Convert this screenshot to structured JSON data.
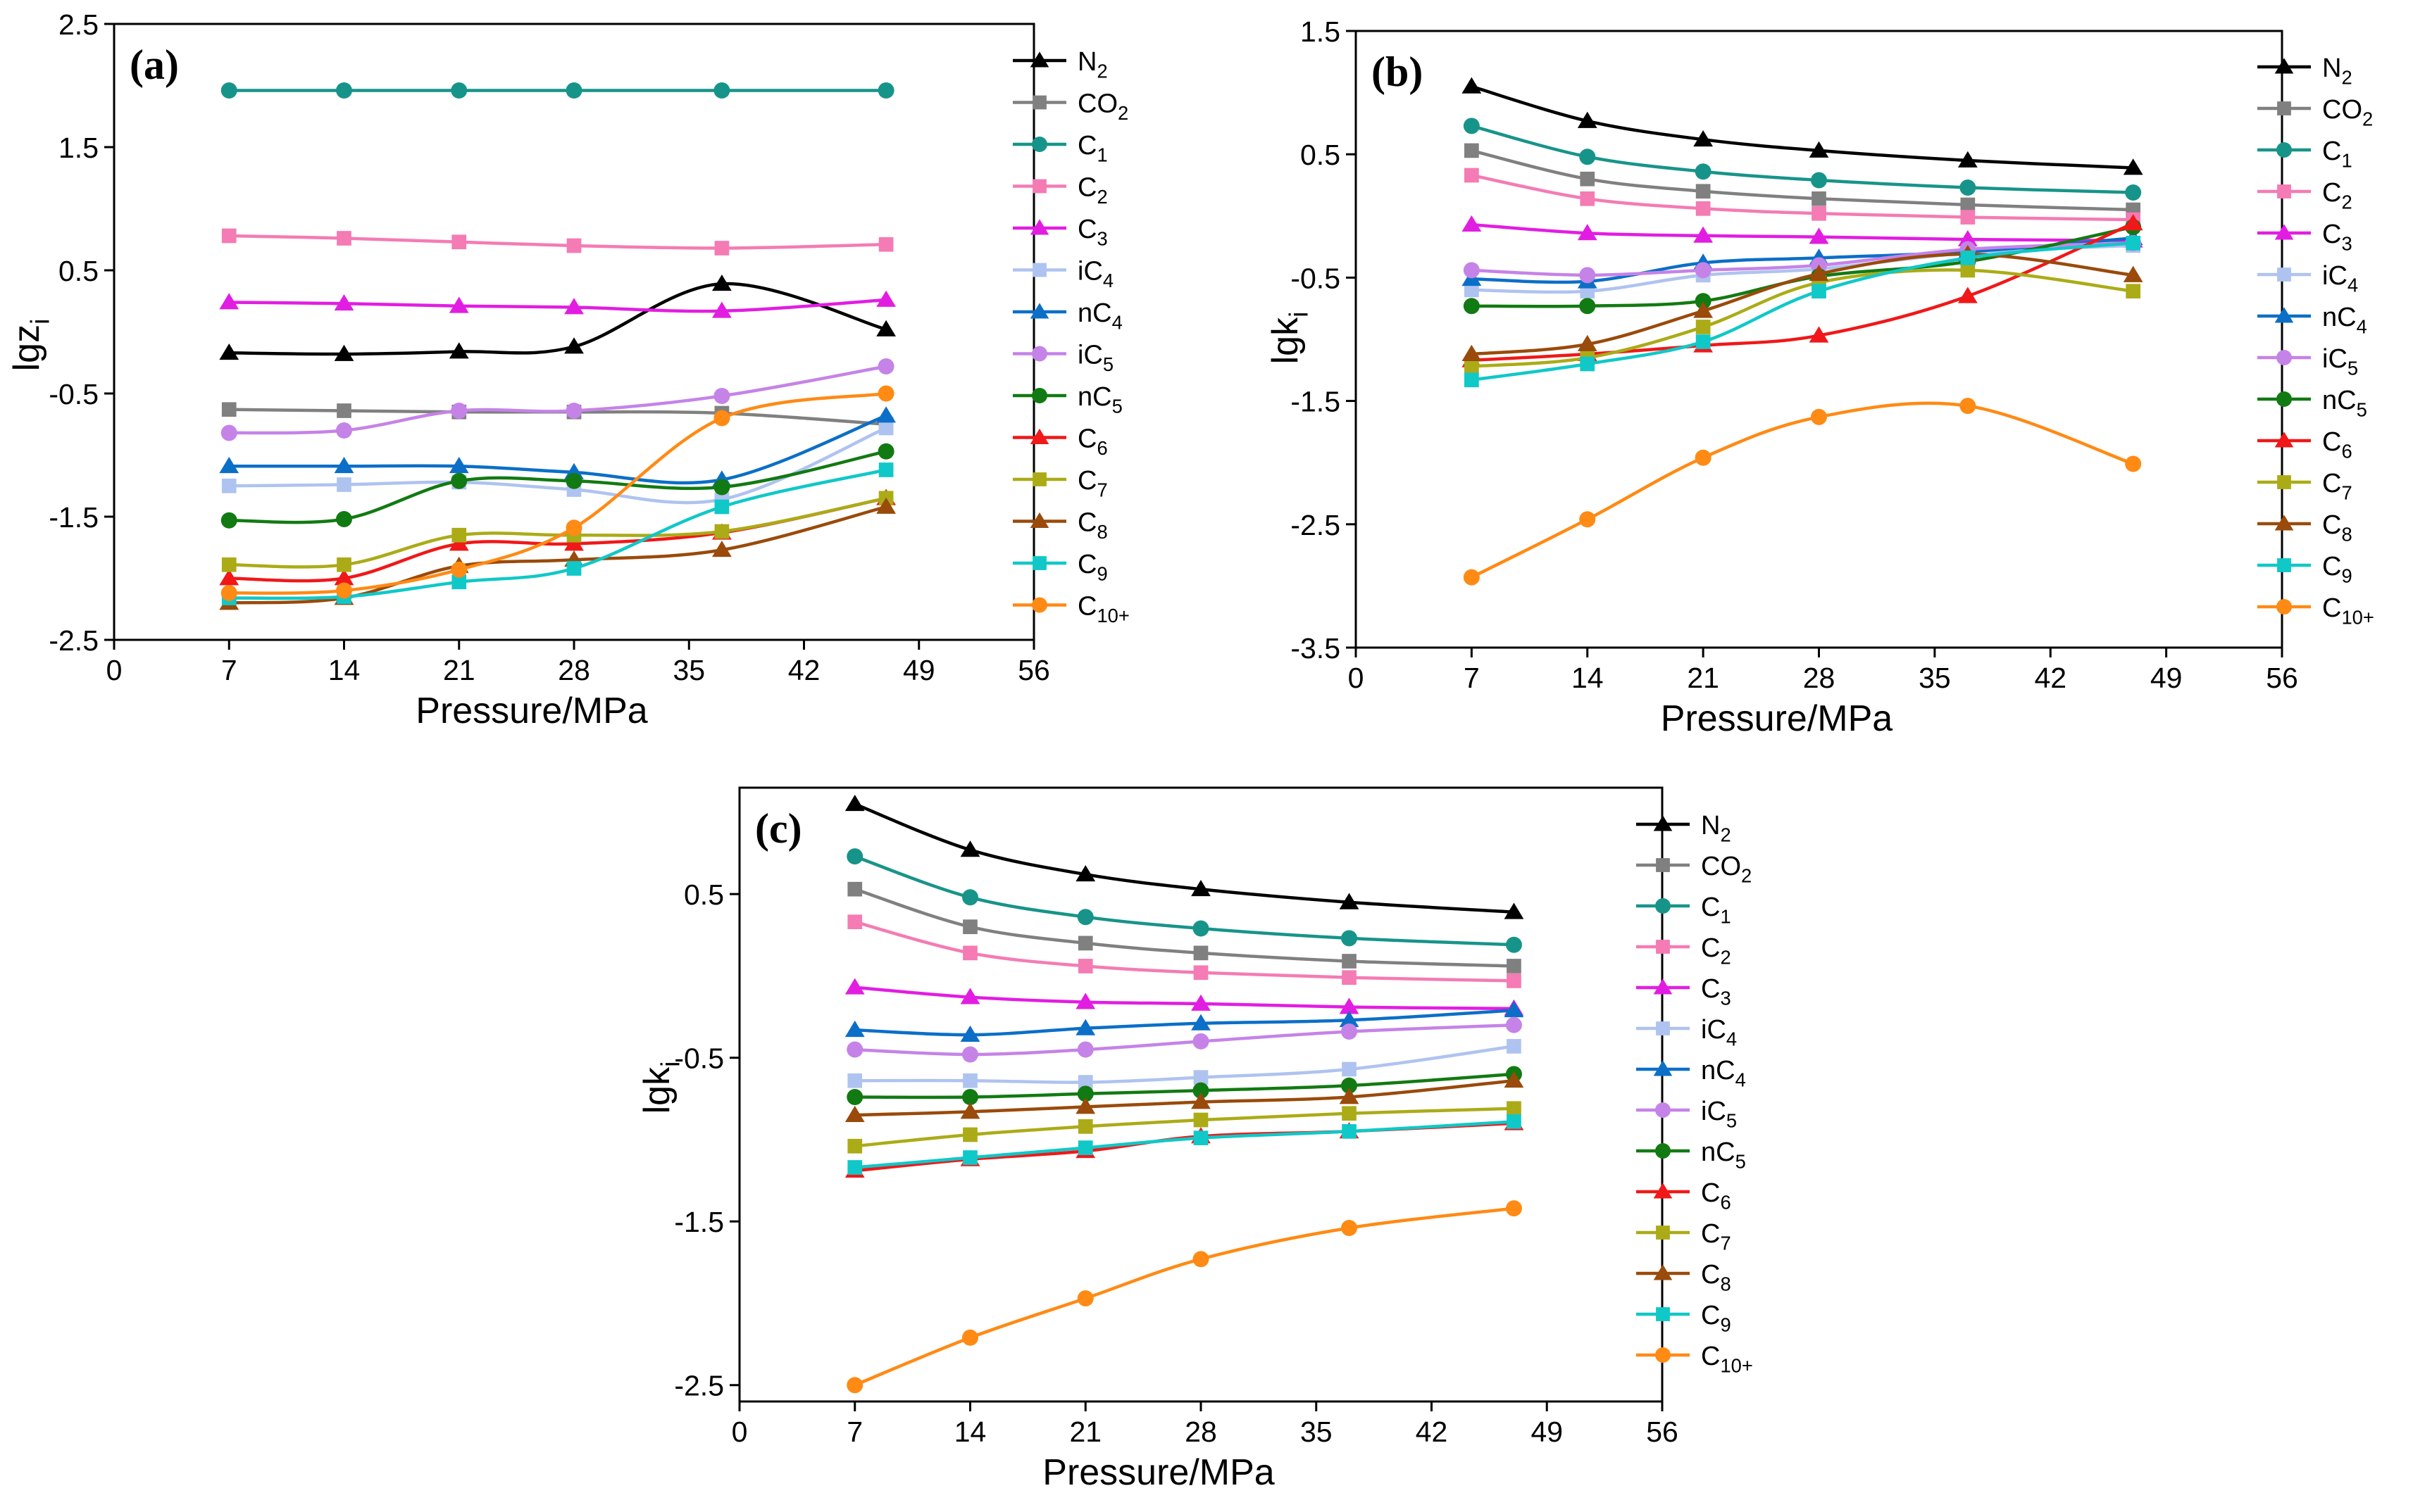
{
  "species_styles": {
    "N2": {
      "color": "#000000",
      "marker": "triangle"
    },
    "CO2": {
      "color": "#808080",
      "marker": "square"
    },
    "C1": {
      "color": "#17948A",
      "marker": "circle"
    },
    "C2": {
      "color": "#F47BB4",
      "marker": "square"
    },
    "C3": {
      "color": "#E21DE2",
      "marker": "triangle"
    },
    "iC4": {
      "color": "#AFC3F0",
      "marker": "square"
    },
    "nC4": {
      "color": "#0B6FC7",
      "marker": "triangle"
    },
    "iC5": {
      "color": "#C583E8",
      "marker": "circle"
    },
    "nC5": {
      "color": "#127A12",
      "marker": "circle"
    },
    "C6": {
      "color": "#F01818",
      "marker": "triangle"
    },
    "C7": {
      "color": "#ABAB17",
      "marker": "square"
    },
    "C8": {
      "color": "#9A4A0A",
      "marker": "triangle"
    },
    "C9": {
      "color": "#10C8C8",
      "marker": "square"
    },
    "C10+": {
      "color": "#FF8A14",
      "marker": "circle"
    }
  },
  "chart_data": [
    {
      "id": "a",
      "type": "line",
      "panel_label": "(a)",
      "xlabel": "Pressure/MPa",
      "ylabel_main": "lgz",
      "ylabel_sub": "i",
      "xlim": [
        0,
        56
      ],
      "ylim": [
        -2.5,
        2.5
      ],
      "xticks": [
        0,
        7,
        14,
        21,
        28,
        35,
        42,
        49,
        56
      ],
      "xtick_labels": [
        "0",
        "7",
        "14",
        "21",
        "28",
        "35",
        "42",
        "49",
        "56"
      ],
      "yticks": [
        -2.5,
        -1.5,
        -0.5,
        0.5,
        1.5,
        2.5
      ],
      "ytick_labels": [
        "-2.5",
        "-1.5",
        "-0.5",
        "0.5",
        "1.5",
        "2.5"
      ],
      "x": [
        7,
        14,
        21,
        28,
        37,
        47
      ],
      "series": [
        {
          "key": "N2",
          "base": "N",
          "sub": "2",
          "values": [
            -0.17,
            -0.18,
            -0.16,
            -0.12,
            0.39,
            0.02
          ]
        },
        {
          "key": "CO2",
          "base": "CO",
          "sub": "2",
          "values": [
            -0.63,
            -0.64,
            -0.65,
            -0.65,
            -0.66,
            -0.75
          ]
        },
        {
          "key": "C1",
          "base": "C",
          "sub": "1",
          "values": [
            1.96,
            1.96,
            1.96,
            1.96,
            1.96,
            1.96
          ]
        },
        {
          "key": "C2",
          "base": "C",
          "sub": "2",
          "values": [
            0.78,
            0.76,
            0.73,
            0.7,
            0.68,
            0.71
          ]
        },
        {
          "key": "C3",
          "base": "C",
          "sub": "3",
          "values": [
            0.24,
            0.23,
            0.21,
            0.2,
            0.17,
            0.26
          ]
        },
        {
          "key": "iC4",
          "base": "iC",
          "sub": "4",
          "values": [
            -1.25,
            -1.24,
            -1.22,
            -1.28,
            -1.36,
            -0.78
          ]
        },
        {
          "key": "nC4",
          "base": "nC",
          "sub": "4",
          "values": [
            -1.09,
            -1.09,
            -1.09,
            -1.14,
            -1.2,
            -0.68
          ]
        },
        {
          "key": "iC5",
          "base": "iC",
          "sub": "5",
          "values": [
            -0.82,
            -0.8,
            -0.64,
            -0.64,
            -0.52,
            -0.28
          ]
        },
        {
          "key": "nC5",
          "base": "nC",
          "sub": "5",
          "values": [
            -1.53,
            -1.52,
            -1.21,
            -1.21,
            -1.26,
            -0.97
          ]
        },
        {
          "key": "C6",
          "base": "C",
          "sub": "6",
          "values": [
            -2.0,
            -2.0,
            -1.72,
            -1.72,
            -1.63,
            -1.35
          ]
        },
        {
          "key": "C7",
          "base": "C",
          "sub": "7",
          "values": [
            -1.89,
            -1.89,
            -1.65,
            -1.65,
            -1.62,
            -1.35
          ]
        },
        {
          "key": "C8",
          "base": "C",
          "sub": "8",
          "values": [
            -2.2,
            -2.16,
            -1.9,
            -1.85,
            -1.77,
            -1.42
          ]
        },
        {
          "key": "C9",
          "base": "C",
          "sub": "9",
          "values": [
            -2.16,
            -2.15,
            -2.03,
            -1.92,
            -1.42,
            -1.12
          ]
        },
        {
          "key": "C10+",
          "base": "C",
          "sub": "10+",
          "values": [
            -2.12,
            -2.1,
            -1.93,
            -1.59,
            -0.7,
            -0.5
          ]
        }
      ]
    },
    {
      "id": "b",
      "type": "line",
      "panel_label": "(b)",
      "xlabel": "Pressure/MPa",
      "ylabel_main": "lgk",
      "ylabel_sub": "i",
      "xlim": [
        0,
        56
      ],
      "ylim": [
        -3.5,
        1.5
      ],
      "xticks": [
        0,
        7,
        14,
        21,
        28,
        35,
        42,
        49,
        56
      ],
      "xtick_labels": [
        "0",
        "7",
        "14",
        "21",
        "28",
        "35",
        "42",
        "49",
        "56"
      ],
      "yticks": [
        -3.5,
        -2.5,
        -1.5,
        -0.5,
        0.5,
        1.5
      ],
      "ytick_labels": [
        "-3.5",
        "-2.5",
        "-1.5",
        "-0.5",
        "0.5",
        "1.5"
      ],
      "x": [
        7,
        14,
        21,
        28,
        37,
        47
      ],
      "series": [
        {
          "key": "N2",
          "base": "N",
          "sub": "2",
          "values": [
            1.05,
            0.77,
            0.62,
            0.53,
            0.45,
            0.39
          ]
        },
        {
          "key": "CO2",
          "base": "CO",
          "sub": "2",
          "values": [
            0.53,
            0.3,
            0.2,
            0.14,
            0.09,
            0.05
          ]
        },
        {
          "key": "C1",
          "base": "C",
          "sub": "1",
          "values": [
            0.73,
            0.48,
            0.36,
            0.29,
            0.23,
            0.19
          ]
        },
        {
          "key": "C2",
          "base": "C",
          "sub": "2",
          "values": [
            0.33,
            0.14,
            0.06,
            0.02,
            -0.01,
            -0.03
          ]
        },
        {
          "key": "C3",
          "base": "C",
          "sub": "3",
          "values": [
            -0.07,
            -0.14,
            -0.16,
            -0.17,
            -0.19,
            -0.2
          ]
        },
        {
          "key": "iC4",
          "base": "iC",
          "sub": "4",
          "values": [
            -0.6,
            -0.61,
            -0.48,
            -0.43,
            -0.3,
            -0.24
          ]
        },
        {
          "key": "nC4",
          "base": "nC",
          "sub": "4",
          "values": [
            -0.51,
            -0.53,
            -0.38,
            -0.34,
            -0.29,
            -0.18
          ]
        },
        {
          "key": "iC5",
          "base": "iC",
          "sub": "5",
          "values": [
            -0.44,
            -0.48,
            -0.44,
            -0.4,
            -0.27,
            -0.22
          ]
        },
        {
          "key": "nC5",
          "base": "nC",
          "sub": "5",
          "values": [
            -0.73,
            -0.73,
            -0.69,
            -0.49,
            -0.37,
            -0.09
          ]
        },
        {
          "key": "C6",
          "base": "C",
          "sub": "6",
          "values": [
            -1.17,
            -1.12,
            -1.05,
            -0.97,
            -0.65,
            -0.06
          ]
        },
        {
          "key": "C7",
          "base": "C",
          "sub": "7",
          "values": [
            -1.22,
            -1.15,
            -0.9,
            -0.54,
            -0.44,
            -0.61
          ]
        },
        {
          "key": "C8",
          "base": "C",
          "sub": "8",
          "values": [
            -1.12,
            -1.04,
            -0.77,
            -0.47,
            -0.31,
            -0.48
          ]
        },
        {
          "key": "C9",
          "base": "C",
          "sub": "9",
          "values": [
            -1.33,
            -1.2,
            -1.02,
            -0.61,
            -0.34,
            -0.22
          ]
        },
        {
          "key": "C10+",
          "base": "C",
          "sub": "10+",
          "values": [
            -2.93,
            -2.46,
            -1.96,
            -1.63,
            -1.54,
            -2.01
          ]
        }
      ]
    },
    {
      "id": "c",
      "type": "line",
      "panel_label": "(c)",
      "xlabel": "Pressure/MPa",
      "ylabel_main": "lgk",
      "ylabel_sub": "i",
      "xlim": [
        0,
        56
      ],
      "ylim": [
        -2.6,
        1.15
      ],
      "xticks": [
        0,
        7,
        14,
        21,
        28,
        35,
        42,
        49,
        56
      ],
      "xtick_labels": [
        "0",
        "7",
        "14",
        "21",
        "28",
        "35",
        "42",
        "49",
        "56"
      ],
      "yticks": [
        -2.5,
        -1.5,
        -0.5,
        0.5
      ],
      "ytick_labels": [
        "-2.5",
        "-1.5",
        "-0.5",
        "0.5"
      ],
      "x": [
        7,
        14,
        21,
        28,
        37,
        47
      ],
      "series": [
        {
          "key": "N2",
          "base": "N",
          "sub": "2",
          "values": [
            1.05,
            0.77,
            0.62,
            0.53,
            0.45,
            0.39
          ]
        },
        {
          "key": "CO2",
          "base": "CO",
          "sub": "2",
          "values": [
            0.53,
            0.3,
            0.2,
            0.14,
            0.09,
            0.06
          ]
        },
        {
          "key": "C1",
          "base": "C",
          "sub": "1",
          "values": [
            0.73,
            0.48,
            0.36,
            0.29,
            0.23,
            0.19
          ]
        },
        {
          "key": "C2",
          "base": "C",
          "sub": "2",
          "values": [
            0.33,
            0.14,
            0.06,
            0.02,
            -0.01,
            -0.03
          ]
        },
        {
          "key": "C3",
          "base": "C",
          "sub": "3",
          "values": [
            -0.07,
            -0.13,
            -0.16,
            -0.17,
            -0.19,
            -0.2
          ]
        },
        {
          "key": "iC4",
          "base": "iC",
          "sub": "4",
          "values": [
            -0.64,
            -0.64,
            -0.65,
            -0.62,
            -0.57,
            -0.43
          ]
        },
        {
          "key": "nC4",
          "base": "nC",
          "sub": "4",
          "values": [
            -0.33,
            -0.36,
            -0.32,
            -0.29,
            -0.27,
            -0.21
          ]
        },
        {
          "key": "iC5",
          "base": "iC",
          "sub": "5",
          "values": [
            -0.45,
            -0.48,
            -0.45,
            -0.4,
            -0.34,
            -0.3
          ]
        },
        {
          "key": "nC5",
          "base": "nC",
          "sub": "5",
          "values": [
            -0.74,
            -0.74,
            -0.72,
            -0.7,
            -0.67,
            -0.6
          ]
        },
        {
          "key": "C6",
          "base": "C",
          "sub": "6",
          "values": [
            -1.19,
            -1.12,
            -1.07,
            -0.98,
            -0.95,
            -0.9
          ]
        },
        {
          "key": "C7",
          "base": "C",
          "sub": "7",
          "values": [
            -1.04,
            -0.97,
            -0.92,
            -0.88,
            -0.84,
            -0.81
          ]
        },
        {
          "key": "C8",
          "base": "C",
          "sub": "8",
          "values": [
            -0.85,
            -0.83,
            -0.8,
            -0.77,
            -0.74,
            -0.64
          ]
        },
        {
          "key": "C9",
          "base": "C",
          "sub": "9",
          "values": [
            -1.17,
            -1.11,
            -1.05,
            -0.99,
            -0.95,
            -0.89
          ]
        },
        {
          "key": "C10+",
          "base": "C",
          "sub": "10+",
          "values": [
            -2.5,
            -2.21,
            -1.97,
            -1.73,
            -1.54,
            -1.42
          ]
        }
      ]
    }
  ]
}
